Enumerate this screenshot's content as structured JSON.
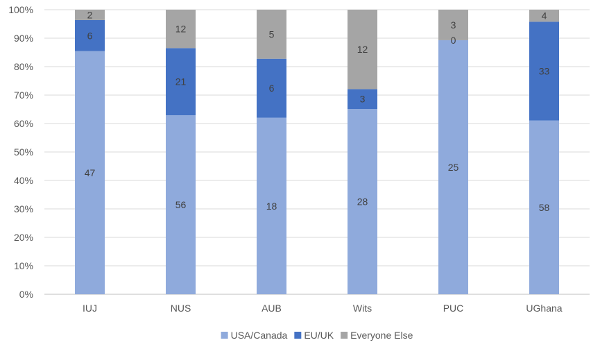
{
  "chart_data": {
    "type": "bar",
    "stacked": "percent",
    "title": "",
    "xlabel": "",
    "ylabel": "",
    "ylim": [
      0,
      100
    ],
    "yticks": [
      "0%",
      "10%",
      "20%",
      "30%",
      "40%",
      "50%",
      "60%",
      "70%",
      "80%",
      "90%",
      "100%"
    ],
    "grid": true,
    "legend": "bottom",
    "categories": [
      "IUJ",
      "NUS",
      "AUB",
      "Wits",
      "PUC",
      "UGhana"
    ],
    "series": [
      {
        "name": "USA/Canada",
        "color": "#8faadc",
        "values": [
          47,
          56,
          18,
          28,
          25,
          58
        ]
      },
      {
        "name": "EU/UK",
        "color": "#4472c4",
        "values": [
          6,
          21,
          6,
          3,
          0,
          33
        ]
      },
      {
        "name": "Everyone Else",
        "color": "#a5a5a5",
        "values": [
          2,
          12,
          5,
          12,
          3,
          4
        ]
      }
    ]
  }
}
